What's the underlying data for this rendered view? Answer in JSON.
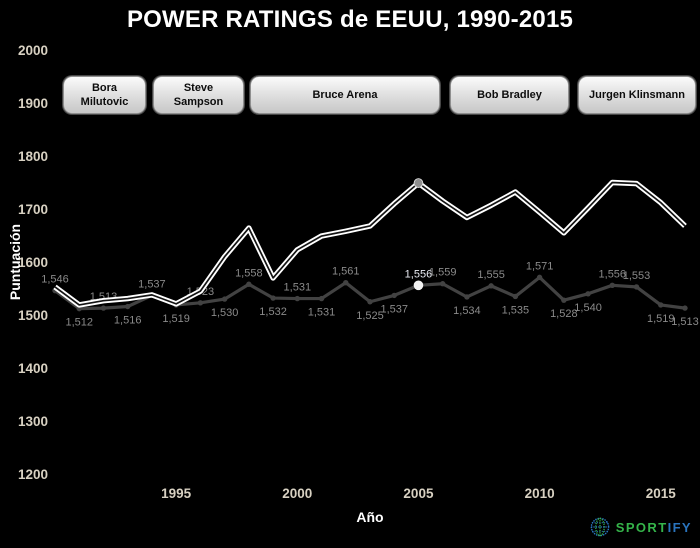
{
  "title": "POWER RATINGS de EEUU, 1990-2015",
  "coach_buttons": [
    {
      "label": "Bora Milutovic"
    },
    {
      "label": "Steve Sampson"
    },
    {
      "label": "Bruce Arena"
    },
    {
      "label": "Bob Bradley"
    },
    {
      "label": "Jurgen Klinsmann"
    }
  ],
  "logo": {
    "sport": "SPORT",
    "ify": "IFY",
    "green": "#35b44a",
    "blue": "#2a74bd"
  },
  "chart_data": {
    "type": "line",
    "title": "POWER RATINGS de EEUU, 1990-2015",
    "xlabel": "Año",
    "ylabel": "Puntuación",
    "x_ticks": [
      1995,
      2000,
      2005,
      2010,
      2015
    ],
    "y_ticks": [
      2000,
      1900,
      1800,
      1700,
      1600,
      1500,
      1400,
      1300,
      1200
    ],
    "ylim": [
      1200,
      2000
    ],
    "grid": false,
    "legend": false,
    "background": "#000000",
    "x": [
      1990,
      1991,
      1992,
      1993,
      1994,
      1995,
      1996,
      1997,
      1998,
      1999,
      2000,
      2001,
      2002,
      2003,
      2004,
      2005,
      2006,
      2007,
      2008,
      2009,
      2010,
      2011,
      2012,
      2013,
      2014,
      2015,
      2016
    ],
    "series": [
      {
        "name": "white-power-rating-line",
        "color": "#ffffff",
        "values": [
          1553,
          1519,
          1527,
          1531,
          1538,
          1521,
          1545,
          1610,
          1664,
          1570,
          1623,
          1649,
          1658,
          1668,
          1710,
          1749,
          1715,
          1684,
          1707,
          1732,
          1694,
          1655,
          1702,
          1750,
          1748,
          1712,
          1668
        ],
        "marker": {
          "year": 2005,
          "value": 1749
        }
      },
      {
        "name": "gray-labeled-rating-line",
        "color": "#424242",
        "values": [
          1546,
          1512,
          1513,
          1516,
          1537,
          1519,
          1523,
          1530,
          1558,
          1532,
          1531,
          1531,
          1561,
          1525,
          1537,
          1556,
          1559,
          1534,
          1555,
          1535,
          1571,
          1528,
          1540,
          1556,
          1553,
          1519,
          1513
        ],
        "labels": [
          "1,546",
          "1,512",
          "1,513",
          "1,516",
          "1,537",
          "1,519",
          "1,523",
          "1,530",
          "1,558",
          "1,532",
          "1,531",
          "1,531",
          "1,561",
          "1,525",
          "1,537",
          "1,556",
          "1,559",
          "1,534",
          "1,555",
          "1,535",
          "1,571",
          "1,528",
          "1,540",
          "1,556",
          "1,553",
          "1,519",
          "1,513"
        ],
        "label_side": [
          "above",
          "below",
          "above",
          "below",
          "above",
          "below",
          "above",
          "below",
          "above",
          "below",
          "above",
          "below",
          "above",
          "below",
          "below",
          "above",
          "above",
          "below",
          "above",
          "below",
          "above",
          "below",
          "below",
          "above",
          "above",
          "below",
          "below"
        ],
        "highlight": {
          "x": 2005,
          "value": 1556,
          "label": "1,556"
        }
      }
    ]
  }
}
